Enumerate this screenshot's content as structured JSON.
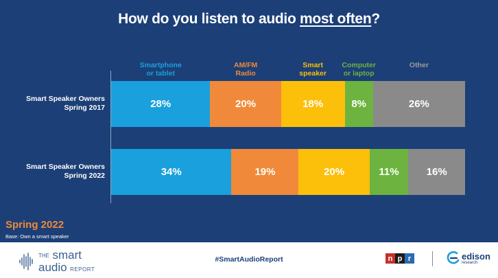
{
  "title_main": "How do you listen to audio ",
  "title_em": "most often",
  "title_end": "?",
  "season_label": "Spring 2022",
  "base_note": "Base: Own a smart speaker",
  "hashtag": "#SmartAudioReport",
  "brand": {
    "the": "THE",
    "smart": "smart",
    "audio": "audio",
    "report": "REPORT"
  },
  "npr_letters": [
    "n",
    "p",
    "r"
  ],
  "edison": {
    "name": "edison",
    "sub": "research"
  },
  "colors": {
    "background": "#1c3f77",
    "smartphone": "#1aa0dc",
    "amfm": "#f08a3a",
    "smart_speaker": "#fcbf0a",
    "computer": "#6db33f",
    "other": "#8a8a8a",
    "npr_n": "#c7302a",
    "npr_p": "#1c1c1c",
    "npr_r": "#2a6cb3"
  },
  "chart_data": {
    "type": "bar",
    "orientation": "horizontal-stacked",
    "title": "How do you listen to audio most often?",
    "unit": "%",
    "categories": [
      "Smart Speaker Owners\nSpring 2017",
      "Smart Speaker Owners\nSpring 2022"
    ],
    "series": [
      {
        "name": "Smartphone\nor tablet",
        "color": "#1aa0dc",
        "values": [
          28,
          34
        ]
      },
      {
        "name": "AM/FM\nRadio",
        "color": "#f08a3a",
        "values": [
          20,
          19
        ]
      },
      {
        "name": "Smart\nspeaker",
        "color": "#fcbf0a",
        "values": [
          18,
          20
        ]
      },
      {
        "name": "Computer\nor laptop",
        "color": "#6db33f",
        "values": [
          8,
          11
        ]
      },
      {
        "name": "Other",
        "color": "#8a8a8a",
        "values": [
          26,
          16
        ]
      }
    ],
    "data_labels": [
      [
        "28%",
        "20%",
        "18%",
        "8%",
        "26%"
      ],
      [
        "34%",
        "19%",
        "20%",
        "11%",
        "16%"
      ]
    ],
    "xlim": [
      0,
      100
    ],
    "grid": false,
    "legend": "top"
  }
}
